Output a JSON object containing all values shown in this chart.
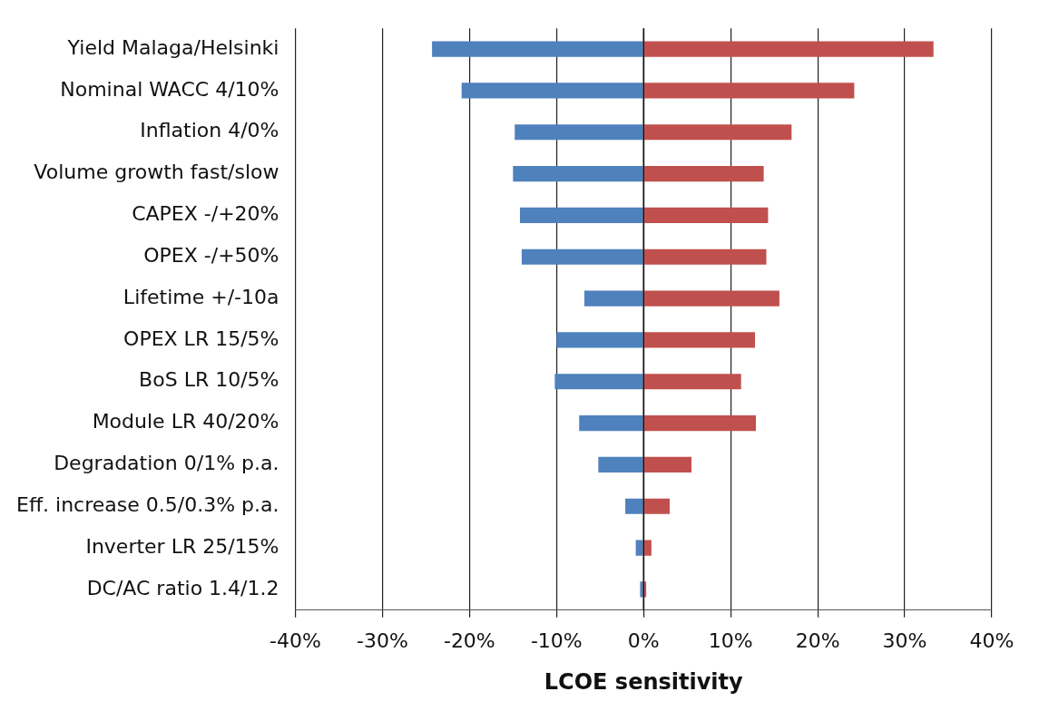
{
  "chart_data": {
    "type": "bar",
    "orientation": "horizontal",
    "stacked": true,
    "xlabel": "LCOE sensitivity",
    "categories": [
      "Yield Malaga/Helsinki",
      "Nominal WACC 4/10%",
      "Inflation 4/0%",
      "Volume growth fast/slow",
      "CAPEX -/+20%",
      "OPEX -/+50%",
      "Lifetime +/-10a",
      "OPEX LR 15/5%",
      "BoS LR 10/5%",
      "Module LR 40/20%",
      "Degradation 0/1% p.a.",
      "Eff. increase 0.5/0.3% p.a.",
      "Inverter LR 25/15%",
      "DC/AC ratio 1.4/1.2"
    ],
    "series": [
      {
        "color": "#4f81bd",
        "values": [
          -24.3,
          -20.9,
          -14.8,
          -15.0,
          -14.2,
          -14.0,
          -6.8,
          -10.0,
          -10.2,
          -7.4,
          -5.2,
          -2.1,
          -0.9,
          -0.4
        ]
      },
      {
        "color": "#c0504d",
        "values": [
          33.3,
          24.2,
          17.0,
          13.8,
          14.3,
          14.1,
          15.6,
          12.8,
          11.2,
          12.9,
          5.5,
          3.0,
          0.9,
          0.3
        ]
      }
    ],
    "xlim": [
      -40,
      40
    ],
    "xticks": [
      {
        "value": -40,
        "label": "-40%"
      },
      {
        "value": -30,
        "label": "-30%"
      },
      {
        "value": -20,
        "label": "-20%"
      },
      {
        "value": -10,
        "label": "-10%"
      },
      {
        "value": 0,
        "label": "0%"
      },
      {
        "value": 10,
        "label": "10%"
      },
      {
        "value": 20,
        "label": "20%"
      },
      {
        "value": 30,
        "label": "30%"
      },
      {
        "value": 40,
        "label": "40%"
      }
    ],
    "grid": "x",
    "legend": false
  }
}
